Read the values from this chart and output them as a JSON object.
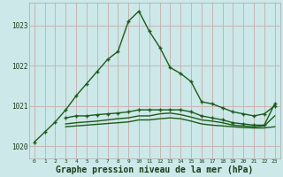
{
  "bg_color": "#cce8e8",
  "grid_color": "#c8b4b4",
  "line_color": "#1a5c1a",
  "xlabel": "Graphe pression niveau de la mer (hPa)",
  "xlabel_fontsize": 7,
  "xlim": [
    -0.5,
    23.5
  ],
  "ylim": [
    1019.7,
    1023.55
  ],
  "yticks": [
    1020,
    1021,
    1022,
    1023
  ],
  "xticks": [
    0,
    1,
    2,
    3,
    4,
    5,
    6,
    7,
    8,
    9,
    10,
    11,
    12,
    13,
    14,
    15,
    16,
    17,
    18,
    19,
    20,
    21,
    22,
    23
  ],
  "series1_x": [
    0,
    1,
    2,
    3,
    4,
    5,
    6,
    7,
    8,
    9,
    10,
    11,
    12,
    13,
    14,
    15,
    16,
    17,
    18,
    19,
    20,
    21,
    22,
    23
  ],
  "series1_y": [
    1020.1,
    1020.35,
    1020.6,
    1020.9,
    1021.25,
    1021.55,
    1021.85,
    1022.15,
    1022.35,
    1023.1,
    1023.35,
    1022.85,
    1022.45,
    1021.95,
    1021.8,
    1021.6,
    1021.1,
    1021.05,
    1020.95,
    1020.85,
    1020.8,
    1020.75,
    1020.8,
    1021.0
  ],
  "series2_x": [
    3,
    4,
    5,
    6,
    7,
    8,
    9,
    10,
    11,
    12,
    13,
    14,
    15,
    16,
    17,
    18,
    19,
    20,
    21,
    22,
    23
  ],
  "series2_y": [
    1020.7,
    1020.75,
    1020.75,
    1020.78,
    1020.8,
    1020.82,
    1020.85,
    1020.9,
    1020.9,
    1020.9,
    1020.9,
    1020.9,
    1020.85,
    1020.75,
    1020.7,
    1020.65,
    1020.58,
    1020.55,
    1020.52,
    1020.52,
    1021.05
  ],
  "series3_x": [
    3,
    4,
    5,
    6,
    7,
    8,
    9,
    10,
    11,
    12,
    13,
    14,
    15,
    16,
    17,
    18,
    19,
    20,
    21,
    22,
    23
  ],
  "series3_y": [
    1020.55,
    1020.58,
    1020.6,
    1020.62,
    1020.65,
    1020.68,
    1020.7,
    1020.75,
    1020.75,
    1020.8,
    1020.82,
    1020.78,
    1020.72,
    1020.65,
    1020.62,
    1020.58,
    1020.52,
    1020.5,
    1020.48,
    1020.5,
    1020.75
  ],
  "series4_x": [
    3,
    4,
    5,
    6,
    7,
    8,
    9,
    10,
    11,
    12,
    13,
    14,
    15,
    16,
    17,
    18,
    19,
    20,
    21,
    22,
    23
  ],
  "series4_y": [
    1020.48,
    1020.5,
    1020.52,
    1020.54,
    1020.56,
    1020.58,
    1020.6,
    1020.65,
    1020.65,
    1020.68,
    1020.7,
    1020.68,
    1020.62,
    1020.55,
    1020.52,
    1020.5,
    1020.48,
    1020.46,
    1020.45,
    1020.45,
    1020.48
  ]
}
